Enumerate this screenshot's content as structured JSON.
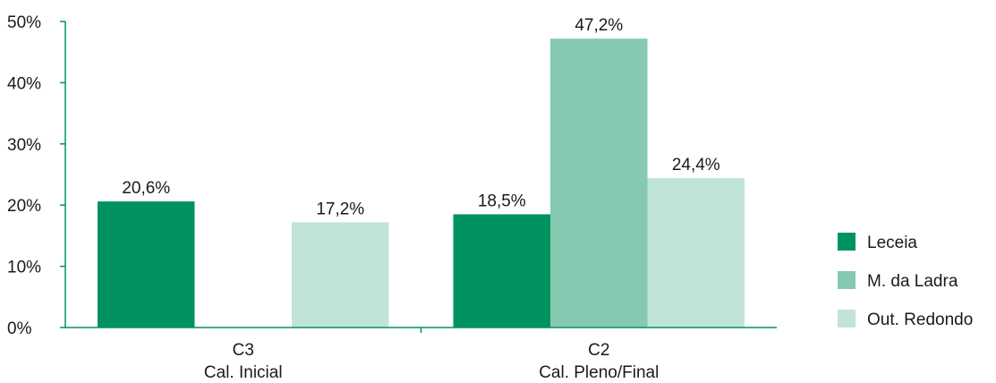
{
  "chart_data": {
    "type": "bar",
    "categories": [
      [
        "C3",
        "Cal. Inicial"
      ],
      [
        "C2",
        "Cal. Pleno/Final"
      ]
    ],
    "series": [
      {
        "name": "Leceia",
        "values": [
          20.6,
          18.5
        ],
        "labels": [
          "20,6%",
          "18,5%"
        ],
        "color": "#00935f"
      },
      {
        "name": "M. da Ladra",
        "values": [
          null,
          47.2
        ],
        "labels": [
          "",
          "47,2%"
        ],
        "color": "#85cab0"
      },
      {
        "name": "Out. Redondo",
        "values": [
          17.2,
          24.4
        ],
        "labels": [
          "17,2%",
          "24,4%"
        ],
        "color": "#c0e4d8"
      }
    ],
    "y_ticks": [
      0,
      10,
      20,
      30,
      40,
      50
    ],
    "y_tick_labels": [
      "0%",
      "10%",
      "20%",
      "30%",
      "40%",
      "50%"
    ],
    "ylim": [
      0,
      50
    ],
    "grid": false,
    "legend_position": "right",
    "axis_color": "#00935f"
  }
}
